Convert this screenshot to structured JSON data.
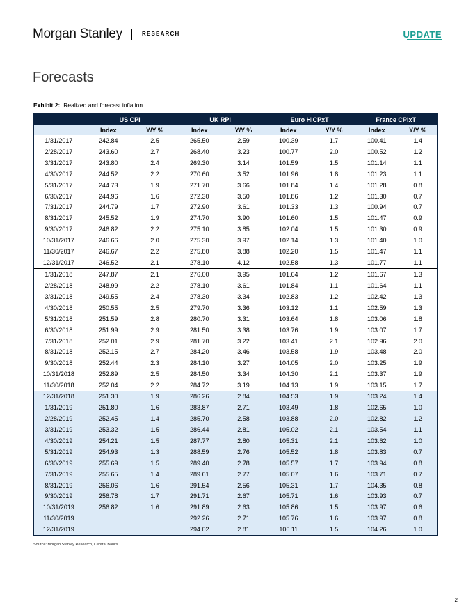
{
  "header": {
    "brand": "Morgan Stanley",
    "section": "RESEARCH",
    "tag": "UPDATE"
  },
  "page_title": "Forecasts",
  "exhibit": {
    "label": "Exhibit 2:",
    "title": "Realized and forecast inflation"
  },
  "table": {
    "groups": [
      "US CPI",
      "UK RPI",
      "Euro HICPxT",
      "France CPIxT"
    ],
    "subheaders": [
      "Index",
      "Y/Y %",
      "Index",
      "Y/Y %",
      "Index",
      "Y/Y %",
      "Index",
      "Y/Y %"
    ],
    "rows": [
      [
        "1/31/2017",
        "242.84",
        "2.5",
        "265.50",
        "2.59",
        "100.39",
        "1.7",
        "100.41",
        "1.4"
      ],
      [
        "2/28/2017",
        "243.60",
        "2.7",
        "268.40",
        "3.23",
        "100.77",
        "2.0",
        "100.52",
        "1.2"
      ],
      [
        "3/31/2017",
        "243.80",
        "2.4",
        "269.30",
        "3.14",
        "101.59",
        "1.5",
        "101.14",
        "1.1"
      ],
      [
        "4/30/2017",
        "244.52",
        "2.2",
        "270.60",
        "3.52",
        "101.96",
        "1.8",
        "101.23",
        "1.1"
      ],
      [
        "5/31/2017",
        "244.73",
        "1.9",
        "271.70",
        "3.66",
        "101.84",
        "1.4",
        "101.28",
        "0.8"
      ],
      [
        "6/30/2017",
        "244.96",
        "1.6",
        "272.30",
        "3.50",
        "101.86",
        "1.2",
        "101.30",
        "0.7"
      ],
      [
        "7/31/2017",
        "244.79",
        "1.7",
        "272.90",
        "3.61",
        "101.33",
        "1.3",
        "100.94",
        "0.7"
      ],
      [
        "8/31/2017",
        "245.52",
        "1.9",
        "274.70",
        "3.90",
        "101.60",
        "1.5",
        "101.47",
        "0.9"
      ],
      [
        "9/30/2017",
        "246.82",
        "2.2",
        "275.10",
        "3.85",
        "102.04",
        "1.5",
        "101.30",
        "0.9"
      ],
      [
        "10/31/2017",
        "246.66",
        "2.0",
        "275.30",
        "3.97",
        "102.14",
        "1.3",
        "101.40",
        "1.0"
      ],
      [
        "11/30/2017",
        "246.67",
        "2.2",
        "275.80",
        "3.88",
        "102.20",
        "1.5",
        "101.47",
        "1.1"
      ],
      [
        "12/31/2017",
        "246.52",
        "2.1",
        "278.10",
        "4.12",
        "102.58",
        "1.3",
        "101.77",
        "1.1"
      ],
      [
        "1/31/2018",
        "247.87",
        "2.1",
        "276.00",
        "3.95",
        "101.64",
        "1.2",
        "101.67",
        "1.3"
      ],
      [
        "2/28/2018",
        "248.99",
        "2.2",
        "278.10",
        "3.61",
        "101.84",
        "1.1",
        "101.64",
        "1.1"
      ],
      [
        "3/31/2018",
        "249.55",
        "2.4",
        "278.30",
        "3.34",
        "102.83",
        "1.2",
        "102.42",
        "1.3"
      ],
      [
        "4/30/2018",
        "250.55",
        "2.5",
        "279.70",
        "3.36",
        "103.12",
        "1.1",
        "102.59",
        "1.3"
      ],
      [
        "5/31/2018",
        "251.59",
        "2.8",
        "280.70",
        "3.31",
        "103.64",
        "1.8",
        "103.06",
        "1.8"
      ],
      [
        "6/30/2018",
        "251.99",
        "2.9",
        "281.50",
        "3.38",
        "103.76",
        "1.9",
        "103.07",
        "1.7"
      ],
      [
        "7/31/2018",
        "252.01",
        "2.9",
        "281.70",
        "3.22",
        "103.41",
        "2.1",
        "102.96",
        "2.0"
      ],
      [
        "8/31/2018",
        "252.15",
        "2.7",
        "284.20",
        "3.46",
        "103.58",
        "1.9",
        "103.48",
        "2.0"
      ],
      [
        "9/30/2018",
        "252.44",
        "2.3",
        "284.10",
        "3.27",
        "104.05",
        "2.0",
        "103.25",
        "1.9"
      ],
      [
        "10/31/2018",
        "252.89",
        "2.5",
        "284.50",
        "3.34",
        "104.30",
        "2.1",
        "103.37",
        "1.9"
      ],
      [
        "11/30/2018",
        "252.04",
        "2.2",
        "284.72",
        "3.19",
        "104.13",
        "1.9",
        "103.15",
        "1.7"
      ],
      [
        "12/31/2018",
        "251.30",
        "1.9",
        "286.26",
        "2.84",
        "104.53",
        "1.9",
        "103.24",
        "1.4"
      ],
      [
        "1/31/2019",
        "251.80",
        "1.6",
        "283.87",
        "2.71",
        "103.49",
        "1.8",
        "102.65",
        "1.0"
      ],
      [
        "2/28/2019",
        "252.45",
        "1.4",
        "285.70",
        "2.58",
        "103.88",
        "2.0",
        "102.82",
        "1.2"
      ],
      [
        "3/31/2019",
        "253.32",
        "1.5",
        "286.44",
        "2.81",
        "105.02",
        "2.1",
        "103.54",
        "1.1"
      ],
      [
        "4/30/2019",
        "254.21",
        "1.5",
        "287.77",
        "2.80",
        "105.31",
        "2.1",
        "103.62",
        "1.0"
      ],
      [
        "5/31/2019",
        "254.93",
        "1.3",
        "288.59",
        "2.76",
        "105.52",
        "1.8",
        "103.83",
        "0.7"
      ],
      [
        "6/30/2019",
        "255.69",
        "1.5",
        "289.40",
        "2.78",
        "105.57",
        "1.7",
        "103.94",
        "0.8"
      ],
      [
        "7/31/2019",
        "255.65",
        "1.4",
        "289.61",
        "2.77",
        "105.07",
        "1.6",
        "103.71",
        "0.7"
      ],
      [
        "8/31/2019",
        "256.06",
        "1.6",
        "291.54",
        "2.56",
        "105.31",
        "1.7",
        "104.35",
        "0.8"
      ],
      [
        "9/30/2019",
        "256.78",
        "1.7",
        "291.71",
        "2.67",
        "105.71",
        "1.6",
        "103.93",
        "0.7"
      ],
      [
        "10/31/2019",
        "256.82",
        "1.6",
        "291.89",
        "2.63",
        "105.86",
        "1.5",
        "103.97",
        "0.6"
      ],
      [
        "11/30/2019",
        "",
        "",
        "292.26",
        "2.71",
        "105.76",
        "1.6",
        "103.97",
        "0.8"
      ],
      [
        "12/31/2019",
        "",
        "",
        "294.02",
        "2.81",
        "106.11",
        "1.5",
        "104.26",
        "1.0"
      ]
    ]
  },
  "source": "Source: Morgan Stanley Research, Central Banks",
  "page_number": "2",
  "colors": {
    "navy": "#0b2240",
    "highlight": "#dceaf7",
    "accent": "#1b9e92"
  }
}
